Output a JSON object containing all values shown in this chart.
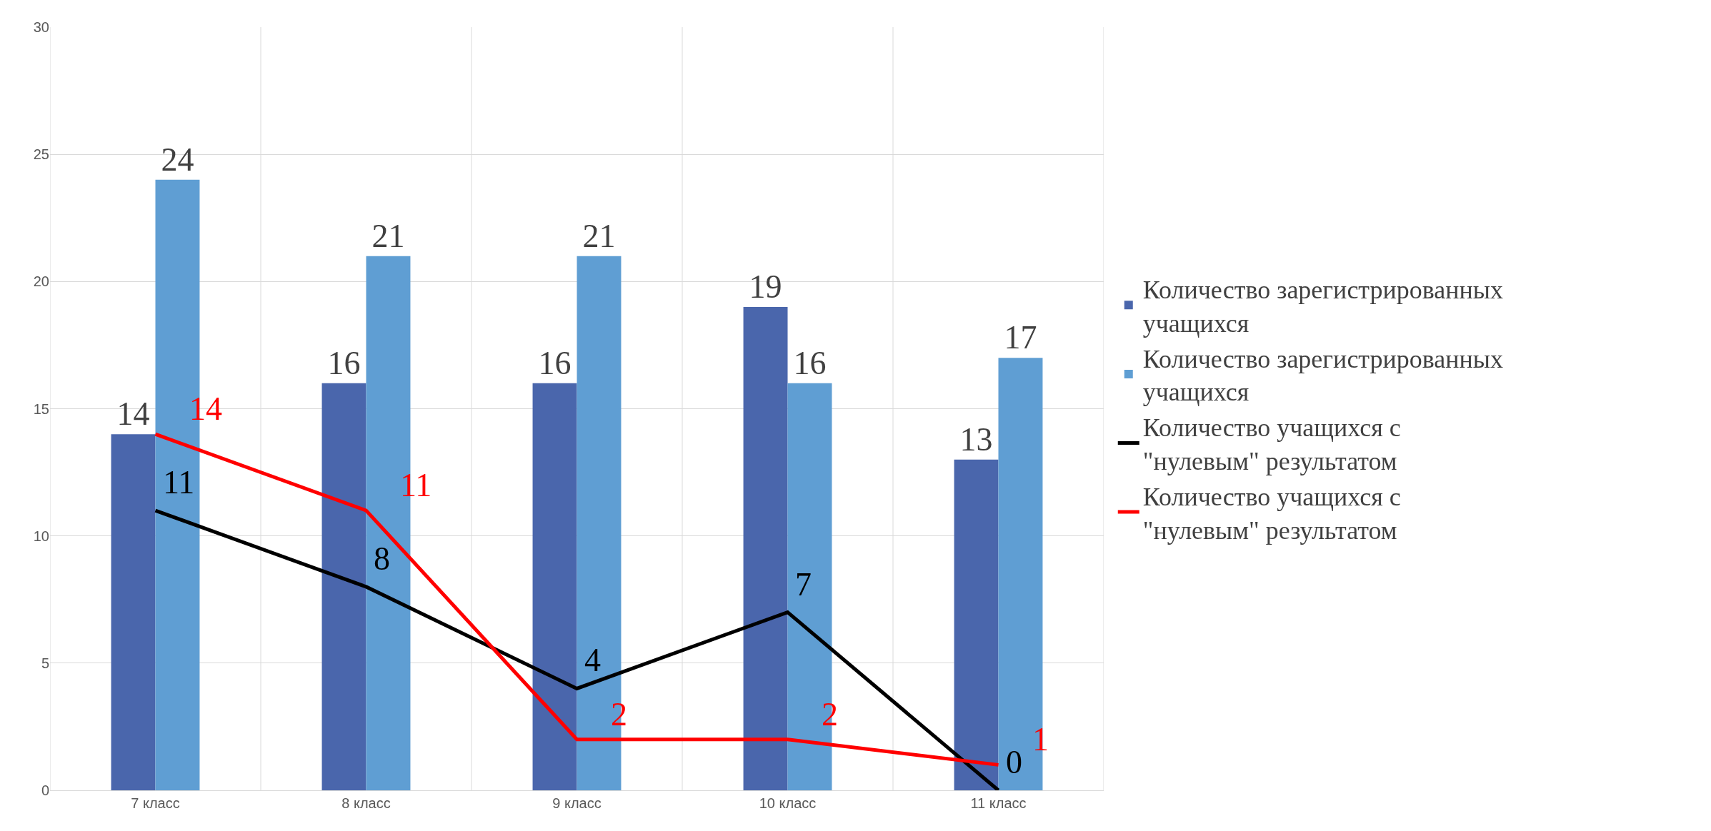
{
  "chart_data": {
    "type": "bar",
    "categories": [
      "7 класс",
      "8 класс",
      "9 класс",
      "10 класс",
      "11 класс"
    ],
    "series": [
      {
        "name": "Количество зарегистрированных учащихся",
        "color": "#4a66ac",
        "values": [
          14,
          16,
          16,
          19,
          13
        ]
      },
      {
        "name": "Количество зарегистрированных учащихся",
        "color": "#5f9ed3",
        "values": [
          24,
          21,
          21,
          16,
          17
        ]
      },
      {
        "name": "Количество учащихся с \"нулевым\" результатом",
        "type": "line",
        "color": "#000000",
        "values": [
          11,
          8,
          4,
          7,
          0
        ]
      },
      {
        "name": "Количество учащихся с \"нулевым\" результатом",
        "type": "line",
        "color": "#ff0000",
        "values": [
          14,
          11,
          2,
          2,
          1
        ]
      }
    ],
    "ylim": [
      0,
      30
    ],
    "yticks": [
      0,
      5,
      10,
      15,
      20,
      25,
      30
    ],
    "grid": true,
    "legend": "right",
    "data_labels": true,
    "marker": "none",
    "line_style": "solid"
  }
}
